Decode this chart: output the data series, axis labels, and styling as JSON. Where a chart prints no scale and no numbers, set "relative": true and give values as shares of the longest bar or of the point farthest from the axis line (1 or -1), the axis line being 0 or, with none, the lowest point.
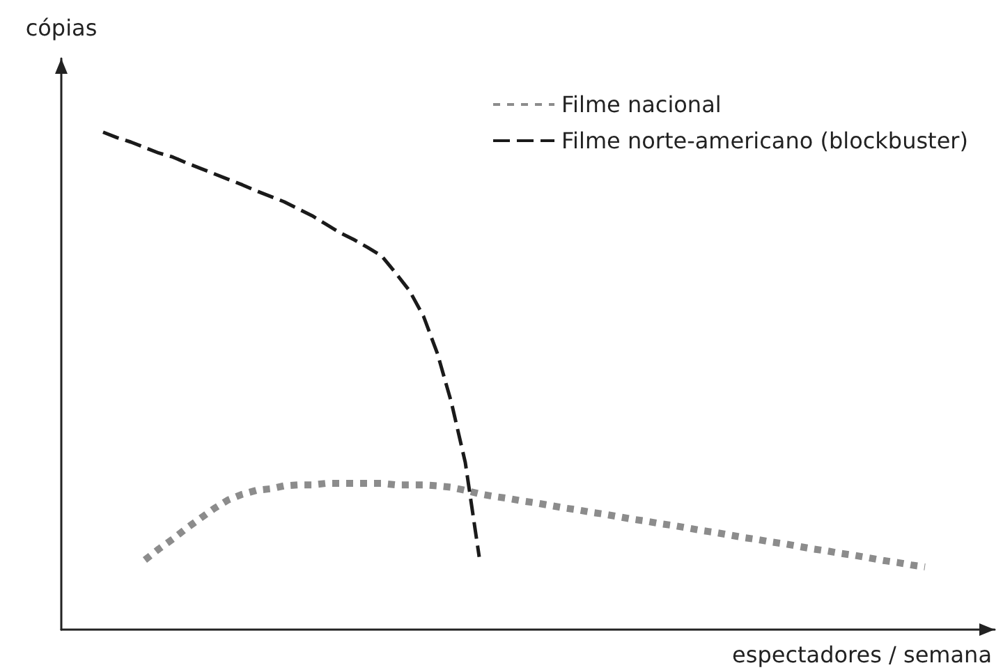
{
  "chart_data": {
    "type": "line",
    "relative": true,
    "xlabel": "espectadores / semana",
    "ylabel": "cópias",
    "legend": "top right",
    "grid": false,
    "marker": "none",
    "categories": [
      null,
      null,
      null,
      null,
      null,
      null,
      null,
      null,
      null,
      null,
      null,
      null,
      null,
      null,
      null,
      null,
      null,
      null,
      null,
      null,
      null,
      null,
      null,
      null,
      null,
      null,
      null,
      null,
      null,
      null,
      null,
      null,
      null,
      null,
      null,
      null,
      null,
      null,
      null,
      null,
      null,
      null,
      null,
      null,
      null,
      null,
      null,
      null,
      null,
      null,
      null,
      null,
      null,
      null,
      null,
      null,
      null,
      null,
      null,
      null,
      null,
      null,
      null,
      null,
      null,
      null,
      null,
      null
    ],
    "series": [
      {
        "name": "Filme nacional",
        "color": "#8c8c8c",
        "line_style": "dotted",
        "values": [
          null,
          null,
          null,
          null,
          null,
          null,
          0.14,
          0.162,
          0.182,
          0.204,
          0.224,
          0.244,
          0.261,
          0.272,
          0.28,
          0.283,
          0.289,
          0.291,
          0.291,
          0.294,
          0.294,
          0.294,
          0.294,
          0.294,
          0.291,
          0.291,
          0.291,
          0.289,
          0.286,
          0.28,
          0.273,
          0.268,
          0.264,
          0.259,
          0.255,
          0.25,
          0.245,
          0.241,
          0.236,
          0.232,
          0.227,
          0.222,
          0.218,
          0.213,
          0.209,
          0.204,
          0.199,
          0.195,
          0.19,
          0.185,
          0.181,
          0.176,
          0.172,
          0.167,
          0.162,
          0.158,
          0.153,
          0.149,
          0.144,
          0.139,
          0.135,
          0.13,
          0.126,
          null,
          null,
          null,
          null,
          null
        ]
      },
      {
        "name": "Filme norte-americano (blockbuster)",
        "color": "#1a1a1a",
        "line_style": "dashed",
        "values": [
          null,
          null,
          null,
          1.0,
          0.989,
          0.98,
          0.969,
          0.958,
          0.95,
          0.938,
          0.927,
          0.916,
          0.905,
          0.894,
          0.882,
          0.871,
          0.86,
          0.846,
          0.832,
          0.815,
          0.798,
          0.784,
          0.768,
          0.751,
          0.717,
          0.681,
          0.63,
          0.555,
          0.457,
          0.336,
          0.146,
          null,
          null,
          null,
          null,
          null,
          null,
          null,
          null,
          null,
          null,
          null,
          null,
          null,
          null,
          null,
          null,
          null,
          null,
          null,
          null,
          null,
          null,
          null,
          null,
          null,
          null,
          null,
          null,
          null,
          null,
          null,
          null,
          null,
          null,
          null,
          null,
          null
        ]
      }
    ]
  }
}
